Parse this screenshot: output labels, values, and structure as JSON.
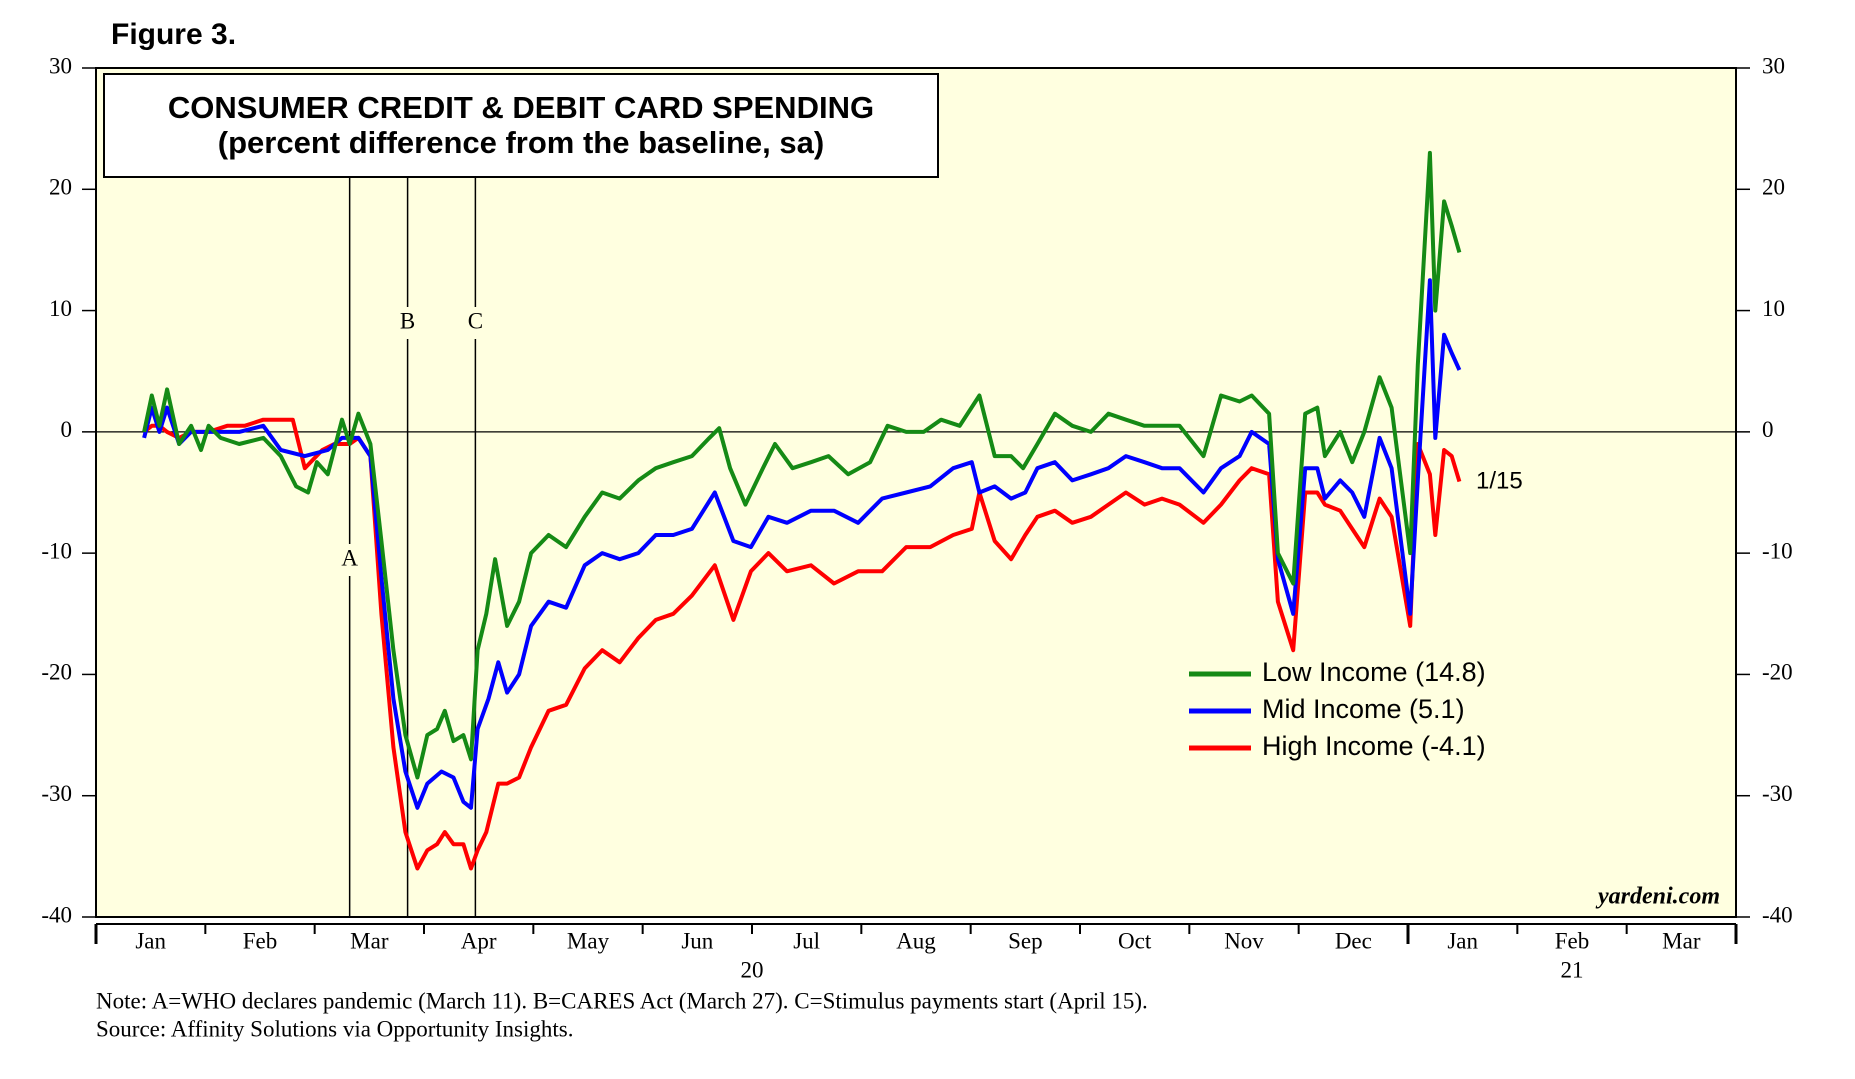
{
  "figure_label": "Figure 3.",
  "chart_data": {
    "type": "line",
    "title": "CONSUMER CREDIT & DEBIT CARD SPENDING",
    "subtitle": "(percent difference from the baseline, sa)",
    "xlim": [
      0,
      15
    ],
    "xticks": [
      {
        "value": 0.5,
        "label": "Jan"
      },
      {
        "value": 1.5,
        "label": "Feb"
      },
      {
        "value": 2.5,
        "label": "Mar"
      },
      {
        "value": 3.5,
        "label": "Apr"
      },
      {
        "value": 4.5,
        "label": "May"
      },
      {
        "value": 5.5,
        "label": "Jun"
      },
      {
        "value": 6.5,
        "label": "Jul"
      },
      {
        "value": 7.5,
        "label": "Aug"
      },
      {
        "value": 8.5,
        "label": "Sep"
      },
      {
        "value": 9.5,
        "label": "Oct"
      },
      {
        "value": 10.5,
        "label": "Nov"
      },
      {
        "value": 11.5,
        "label": "Dec"
      },
      {
        "value": 12.5,
        "label": "Jan"
      },
      {
        "value": 13.5,
        "label": "Feb"
      },
      {
        "value": 14.5,
        "label": "Mar"
      }
    ],
    "year_labels": [
      {
        "value": 6,
        "label": "20"
      },
      {
        "value": 13.5,
        "label": "21"
      }
    ],
    "ylim": [
      -40,
      30
    ],
    "yticks": [
      -40,
      -30,
      -20,
      -10,
      0,
      10,
      20,
      30
    ],
    "zero_line": 0,
    "events": [
      {
        "x": 2.32,
        "label": "A"
      },
      {
        "x": 2.85,
        "label": "B"
      },
      {
        "x": 3.47,
        "label": "C"
      }
    ],
    "series": [
      {
        "name": "Low Income (14.8)",
        "color": "#158a15",
        "x": [
          0.44,
          0.51,
          0.58,
          0.65,
          0.76,
          0.87,
          0.96,
          1.03,
          1.14,
          1.31,
          1.53,
          1.69,
          1.83,
          1.94,
          2.02,
          2.12,
          2.25,
          2.32,
          2.4,
          2.51,
          2.61,
          2.72,
          2.83,
          2.94,
          3.03,
          3.12,
          3.19,
          3.27,
          3.36,
          3.43,
          3.49,
          3.57,
          3.65,
          3.76,
          3.87,
          3.98,
          4.14,
          4.3,
          4.47,
          4.63,
          4.79,
          4.96,
          5.12,
          5.28,
          5.45,
          5.61,
          5.7,
          5.8,
          5.94,
          6.1,
          6.21,
          6.37,
          6.54,
          6.7,
          6.88,
          7.08,
          7.24,
          7.41,
          7.57,
          7.73,
          7.9,
          8.08,
          8.22,
          8.37,
          8.48,
          8.61,
          8.77,
          8.93,
          9.1,
          9.26,
          9.42,
          9.59,
          9.75,
          9.91,
          10.13,
          10.29,
          10.46,
          10.57,
          10.73,
          10.81,
          10.95,
          11.06,
          11.17,
          11.24,
          11.38,
          11.49,
          11.6,
          11.74,
          11.85,
          12.02,
          12.09,
          12.2,
          12.25,
          12.33,
          12.4,
          12.47
        ],
        "values": [
          0,
          3,
          0.5,
          3.5,
          -1,
          0.5,
          -1.5,
          0.5,
          -0.5,
          -1,
          -0.5,
          -2,
          -4.5,
          -5,
          -2.5,
          -3.5,
          1,
          -1,
          1.5,
          -1,
          -9,
          -18,
          -25,
          -28.5,
          -25,
          -24.5,
          -23,
          -25.5,
          -25,
          -27,
          -18,
          -15,
          -10.5,
          -16,
          -14,
          -10,
          -8.5,
          -9.5,
          -7,
          -5,
          -5.5,
          -4,
          -3,
          -2.5,
          -2,
          -0.5,
          0.3,
          -3,
          -6,
          -3,
          -1,
          -3,
          -2.5,
          -2,
          -3.5,
          -2.5,
          0.5,
          0,
          0,
          1,
          0.5,
          3,
          -2,
          -2,
          -3,
          -1,
          1.5,
          0.5,
          0,
          1.5,
          1,
          0.5,
          0.5,
          0.5,
          -2,
          3,
          2.5,
          3,
          1.5,
          -10,
          -12.5,
          1.5,
          2,
          -2,
          0,
          -2.5,
          0,
          4.5,
          2,
          -10,
          5.5,
          23,
          10,
          19,
          17,
          14.8
        ]
      },
      {
        "name": "Mid Income (5.1)",
        "color": "#0000ff",
        "x": [
          0.44,
          0.51,
          0.58,
          0.65,
          0.76,
          0.87,
          1.03,
          1.31,
          1.53,
          1.69,
          1.91,
          2.12,
          2.25,
          2.4,
          2.51,
          2.61,
          2.72,
          2.83,
          2.94,
          3.03,
          3.16,
          3.27,
          3.36,
          3.43,
          3.49,
          3.59,
          3.68,
          3.76,
          3.87,
          3.98,
          4.14,
          4.3,
          4.47,
          4.63,
          4.79,
          4.96,
          5.12,
          5.28,
          5.45,
          5.66,
          5.83,
          5.99,
          6.15,
          6.32,
          6.54,
          6.75,
          6.97,
          7.19,
          7.41,
          7.63,
          7.84,
          8.01,
          8.08,
          8.22,
          8.37,
          8.5,
          8.61,
          8.77,
          8.93,
          9.1,
          9.26,
          9.42,
          9.59,
          9.75,
          9.91,
          10.13,
          10.29,
          10.46,
          10.57,
          10.73,
          10.81,
          10.95,
          11.06,
          11.17,
          11.24,
          11.38,
          11.49,
          11.6,
          11.74,
          11.85,
          12.02,
          12.09,
          12.2,
          12.25,
          12.33,
          12.4,
          12.47
        ],
        "values": [
          -0.5,
          2,
          0,
          2,
          -1,
          0,
          0,
          0,
          0.5,
          -1.5,
          -2,
          -1.5,
          -0.5,
          -0.5,
          -2,
          -12,
          -22,
          -28,
          -31,
          -29,
          -28,
          -28.5,
          -30.5,
          -31,
          -24.5,
          -22,
          -19,
          -21.5,
          -20,
          -16,
          -14,
          -14.5,
          -11,
          -10,
          -10.5,
          -10,
          -8.5,
          -8.5,
          -8,
          -5,
          -9,
          -9.5,
          -7,
          -7.5,
          -6.5,
          -6.5,
          -7.5,
          -5.5,
          -5,
          -4.5,
          -3,
          -2.5,
          -5,
          -4.5,
          -5.5,
          -5,
          -3,
          -2.5,
          -4,
          -3.5,
          -3,
          -2,
          -2.5,
          -3,
          -3,
          -5,
          -3,
          -2,
          0,
          -1,
          -10.5,
          -15,
          -3,
          -3,
          -5.5,
          -4,
          -5,
          -7,
          -0.5,
          -3,
          -15,
          -4,
          12.5,
          -0.5,
          8,
          6.5,
          5.1
        ]
      },
      {
        "name": "High Income (-4.1)",
        "color": "#ff0000",
        "x": [
          0.44,
          0.51,
          0.58,
          0.65,
          0.76,
          0.87,
          1.03,
          1.2,
          1.36,
          1.53,
          1.69,
          1.8,
          1.91,
          2.07,
          2.18,
          2.32,
          2.4,
          2.51,
          2.61,
          2.72,
          2.83,
          2.94,
          3.03,
          3.12,
          3.19,
          3.27,
          3.36,
          3.43,
          3.49,
          3.57,
          3.68,
          3.76,
          3.87,
          3.98,
          4.14,
          4.3,
          4.47,
          4.63,
          4.79,
          4.96,
          5.12,
          5.28,
          5.45,
          5.66,
          5.83,
          5.99,
          6.15,
          6.32,
          6.54,
          6.75,
          6.97,
          7.19,
          7.41,
          7.63,
          7.84,
          8.01,
          8.08,
          8.22,
          8.37,
          8.5,
          8.61,
          8.77,
          8.93,
          9.1,
          9.26,
          9.42,
          9.59,
          9.75,
          9.91,
          10.13,
          10.29,
          10.46,
          10.57,
          10.73,
          10.81,
          10.95,
          11.06,
          11.17,
          11.24,
          11.38,
          11.49,
          11.6,
          11.74,
          11.85,
          12.02,
          12.09,
          12.2,
          12.25,
          12.33,
          12.4,
          12.47
        ],
        "values": [
          0,
          0.5,
          0.5,
          0,
          -0.5,
          0,
          0,
          0.5,
          0.5,
          1,
          1,
          1,
          -3,
          -1.5,
          -1,
          -1,
          -0.5,
          -2,
          -15,
          -26,
          -33,
          -36,
          -34.5,
          -34,
          -33,
          -34,
          -34,
          -36,
          -34.5,
          -33,
          -29,
          -29,
          -28.5,
          -26,
          -23,
          -22.5,
          -19.5,
          -18,
          -19,
          -17,
          -15.5,
          -15,
          -13.5,
          -11,
          -15.5,
          -11.5,
          -10,
          -11.5,
          -11,
          -12.5,
          -11.5,
          -11.5,
          -9.5,
          -9.5,
          -8.5,
          -8,
          -5,
          -9,
          -10.5,
          -8.5,
          -7,
          -6.5,
          -7.5,
          -7,
          -6,
          -5,
          -6,
          -5.5,
          -6,
          -7.5,
          -6,
          -4,
          -3,
          -3.5,
          -14,
          -18,
          -5,
          -5,
          -6,
          -6.5,
          -8,
          -9.5,
          -5.5,
          -7,
          -16,
          -1,
          -3.5,
          -8.5,
          -1.5,
          -2,
          -4.1
        ]
      }
    ],
    "end_label": "1/15",
    "source_tag": "yardeni.com",
    "legend": "right"
  },
  "notes": [
    "Note: A=WHO declares pandemic (March 11). B=CARES Act (March 27). C=Stimulus payments start (April 15).",
    "Source: Affinity Solutions via Opportunity Insights."
  ]
}
